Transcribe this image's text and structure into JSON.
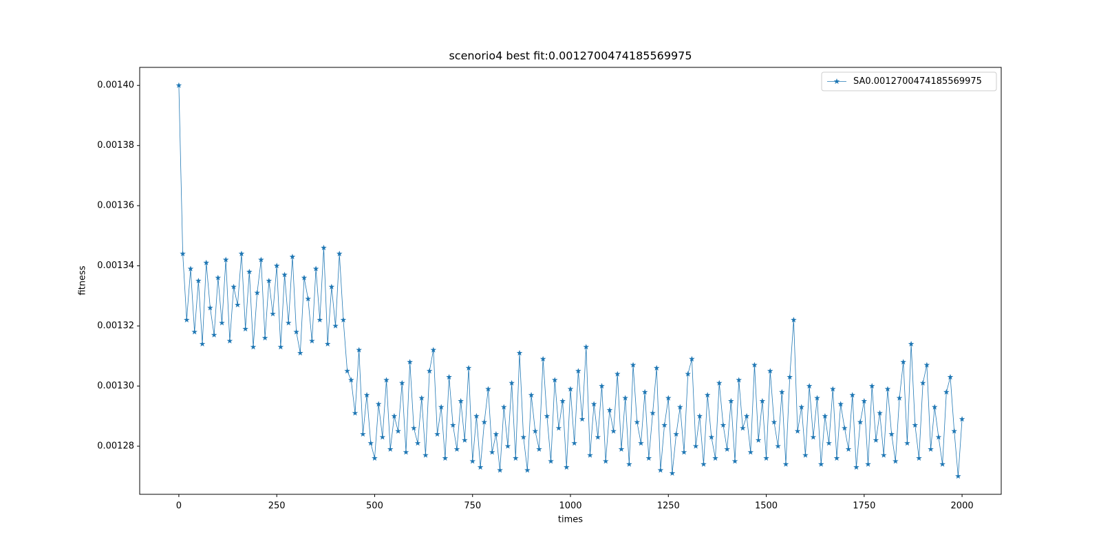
{
  "chart_data": {
    "type": "line",
    "title": "scenorio4 best fit:0.0012700474185569975",
    "x_label": "times",
    "y_label": "fitness",
    "x": [
      0,
      10,
      20,
      30,
      40,
      50,
      60,
      70,
      80,
      90,
      100,
      110,
      120,
      130,
      140,
      150,
      160,
      170,
      180,
      190,
      200,
      210,
      220,
      230,
      240,
      250,
      260,
      270,
      280,
      290,
      300,
      310,
      320,
      330,
      340,
      350,
      360,
      370,
      380,
      390,
      400,
      410,
      420,
      430,
      440,
      450,
      460,
      470,
      480,
      490,
      500,
      510,
      520,
      530,
      540,
      550,
      560,
      570,
      580,
      590,
      600,
      610,
      620,
      630,
      640,
      650,
      660,
      670,
      680,
      690,
      700,
      710,
      720,
      730,
      740,
      750,
      760,
      770,
      780,
      790,
      800,
      810,
      820,
      830,
      840,
      850,
      860,
      870,
      880,
      890,
      900,
      910,
      920,
      930,
      940,
      950,
      960,
      970,
      980,
      990,
      1000,
      1010,
      1020,
      1030,
      1040,
      1050,
      1060,
      1070,
      1080,
      1090,
      1100,
      1110,
      1120,
      1130,
      1140,
      1150,
      1160,
      1170,
      1180,
      1190,
      1200,
      1210,
      1220,
      1230,
      1240,
      1250,
      1260,
      1270,
      1280,
      1290,
      1300,
      1310,
      1320,
      1330,
      1340,
      1350,
      1360,
      1370,
      1380,
      1390,
      1400,
      1410,
      1420,
      1430,
      1440,
      1450,
      1460,
      1470,
      1480,
      1490,
      1500,
      1510,
      1520,
      1530,
      1540,
      1550,
      1560,
      1570,
      1580,
      1590,
      1600,
      1610,
      1620,
      1630,
      1640,
      1650,
      1660,
      1670,
      1680,
      1690,
      1700,
      1710,
      1720,
      1730,
      1740,
      1750,
      1760,
      1770,
      1780,
      1790,
      1800,
      1810,
      1820,
      1830,
      1840,
      1850,
      1860,
      1870,
      1880,
      1890,
      1900,
      1910,
      1920,
      1930,
      1940,
      1950,
      1960,
      1970,
      1980,
      1990,
      2000
    ],
    "series": [
      {
        "name": "SA0.0012700474185569975",
        "color": "#1f77b4",
        "values": [
          0.0014,
          0.001344,
          0.001322,
          0.001339,
          0.001318,
          0.001335,
          0.001314,
          0.001341,
          0.001326,
          0.001317,
          0.001336,
          0.001321,
          0.001342,
          0.001315,
          0.001333,
          0.001327,
          0.001344,
          0.001319,
          0.001338,
          0.001313,
          0.001331,
          0.001342,
          0.001316,
          0.001335,
          0.001324,
          0.00134,
          0.001313,
          0.001337,
          0.001321,
          0.001343,
          0.001318,
          0.001311,
          0.001336,
          0.001329,
          0.001315,
          0.001339,
          0.001322,
          0.001346,
          0.001314,
          0.001333,
          0.00132,
          0.001344,
          0.001322,
          0.001305,
          0.001302,
          0.001291,
          0.001312,
          0.001284,
          0.001297,
          0.001281,
          0.001276,
          0.001294,
          0.001283,
          0.001302,
          0.001279,
          0.00129,
          0.001285,
          0.001301,
          0.001278,
          0.001308,
          0.001286,
          0.001281,
          0.001296,
          0.001277,
          0.001305,
          0.001312,
          0.001284,
          0.001293,
          0.001276,
          0.001303,
          0.001287,
          0.001279,
          0.001295,
          0.001282,
          0.001306,
          0.001275,
          0.00129,
          0.001273,
          0.001288,
          0.001299,
          0.001278,
          0.001284,
          0.001272,
          0.001293,
          0.00128,
          0.001301,
          0.001276,
          0.001311,
          0.001283,
          0.001272,
          0.001297,
          0.001285,
          0.001279,
          0.001309,
          0.00129,
          0.001275,
          0.001302,
          0.001286,
          0.001295,
          0.001273,
          0.001299,
          0.001281,
          0.001305,
          0.001289,
          0.001313,
          0.001277,
          0.001294,
          0.001283,
          0.0013,
          0.001275,
          0.001292,
          0.001285,
          0.001304,
          0.001279,
          0.001296,
          0.001274,
          0.001307,
          0.001288,
          0.001281,
          0.001298,
          0.001276,
          0.001291,
          0.001306,
          0.001272,
          0.001287,
          0.001296,
          0.001271,
          0.001284,
          0.001293,
          0.001278,
          0.001304,
          0.001309,
          0.00128,
          0.00129,
          0.001274,
          0.001297,
          0.001283,
          0.001276,
          0.001301,
          0.001287,
          0.001279,
          0.001295,
          0.001275,
          0.001302,
          0.001286,
          0.00129,
          0.001278,
          0.001307,
          0.001282,
          0.001295,
          0.001276,
          0.001305,
          0.001288,
          0.00128,
          0.001298,
          0.001274,
          0.001303,
          0.001322,
          0.001285,
          0.001293,
          0.001277,
          0.0013,
          0.001283,
          0.001296,
          0.001274,
          0.00129,
          0.001281,
          0.001299,
          0.001276,
          0.001294,
          0.001286,
          0.001279,
          0.001297,
          0.001273,
          0.001288,
          0.001295,
          0.001274,
          0.0013,
          0.001282,
          0.001291,
          0.001277,
          0.001299,
          0.001284,
          0.001275,
          0.001296,
          0.001308,
          0.001281,
          0.001314,
          0.001287,
          0.001276,
          0.001301,
          0.001307,
          0.001279,
          0.001293,
          0.001283,
          0.001274,
          0.001298,
          0.001303,
          0.001285,
          0.00127,
          0.001289
        ]
      }
    ],
    "xlim": [
      -100,
      2100
    ],
    "ylim": [
      0.001264,
      0.001406
    ],
    "xticks": [
      0,
      250,
      500,
      750,
      1000,
      1250,
      1500,
      1750,
      2000
    ],
    "yticks": [
      {
        "value": 0.00128,
        "label": "0.00128"
      },
      {
        "value": 0.0013,
        "label": "0.00130"
      },
      {
        "value": 0.00132,
        "label": "0.00132"
      },
      {
        "value": 0.00134,
        "label": "0.00134"
      },
      {
        "value": 0.00136,
        "label": "0.00136"
      },
      {
        "value": 0.00138,
        "label": "0.00138"
      },
      {
        "value": 0.0014,
        "label": "0.00140"
      }
    ],
    "legend": "upper right",
    "grid": false
  }
}
